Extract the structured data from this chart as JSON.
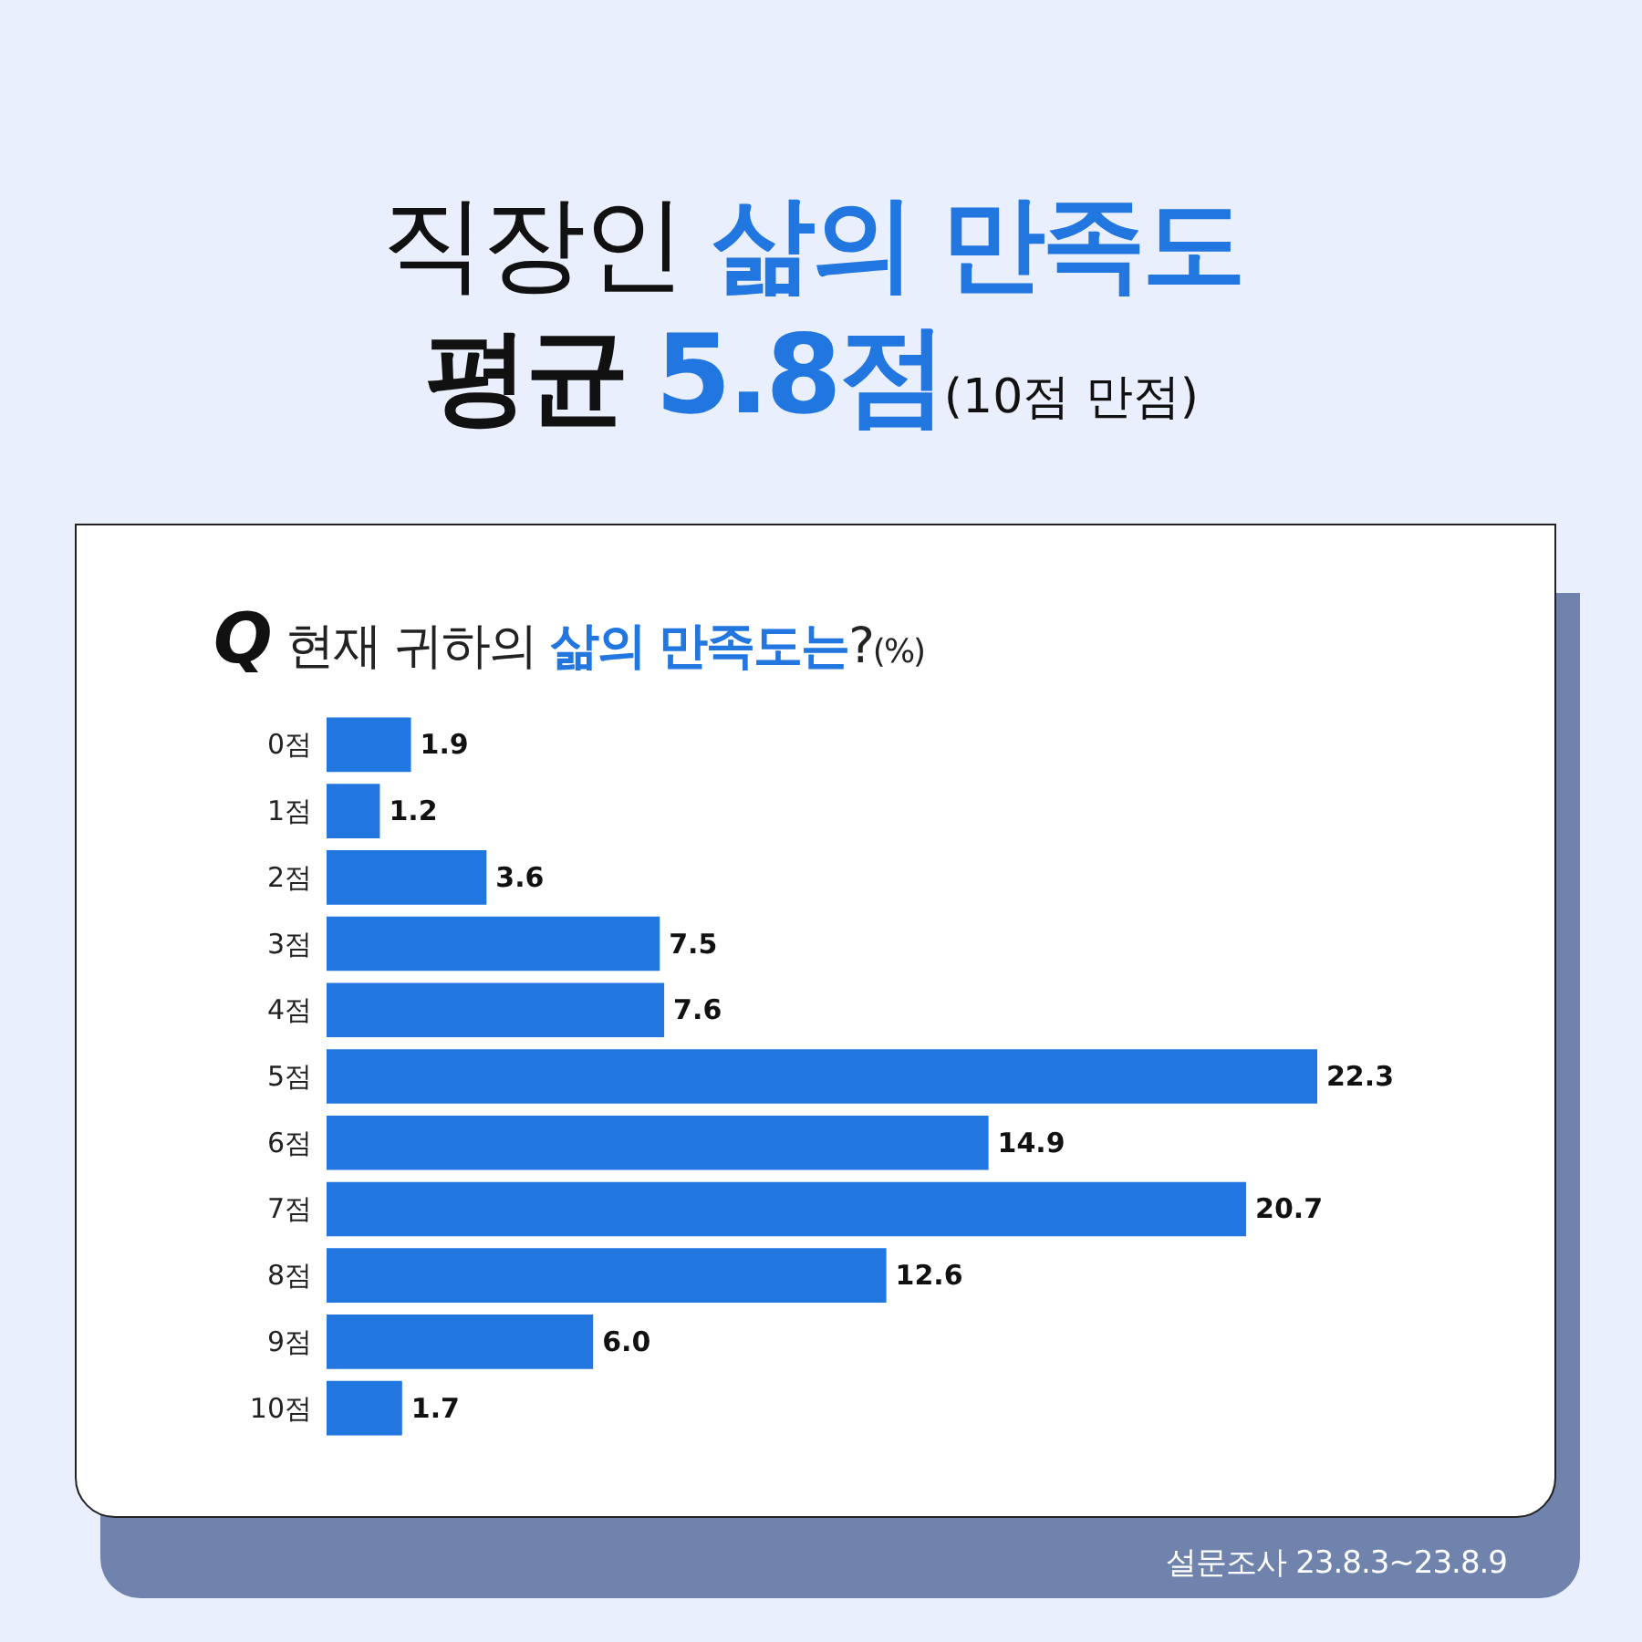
{
  "chart_data": {
    "type": "bar",
    "orientation": "horizontal",
    "title": "직장인 삶의 만족도\n평균 5.8점(10점 만점)",
    "subtitle": "Q 현재 귀하의 삶의 만족도는?(%)",
    "categories": [
      "0점",
      "1점",
      "2점",
      "3점",
      "4점",
      "5점",
      "6점",
      "7점",
      "8점",
      "9점",
      "10점"
    ],
    "values": [
      1.9,
      1.2,
      3.6,
      7.5,
      7.6,
      22.3,
      14.9,
      20.7,
      12.6,
      6.0,
      1.7
    ],
    "value_labels": [
      "1.9",
      "1.2",
      "3.6",
      "7.5",
      "7.6",
      "22.3",
      "14.9",
      "20.7",
      "12.6",
      "6.0",
      "1.7"
    ],
    "color": "#2176e0",
    "annotations": [
      "설문조사 23.8.3~23.8.9"
    ]
  }
}
